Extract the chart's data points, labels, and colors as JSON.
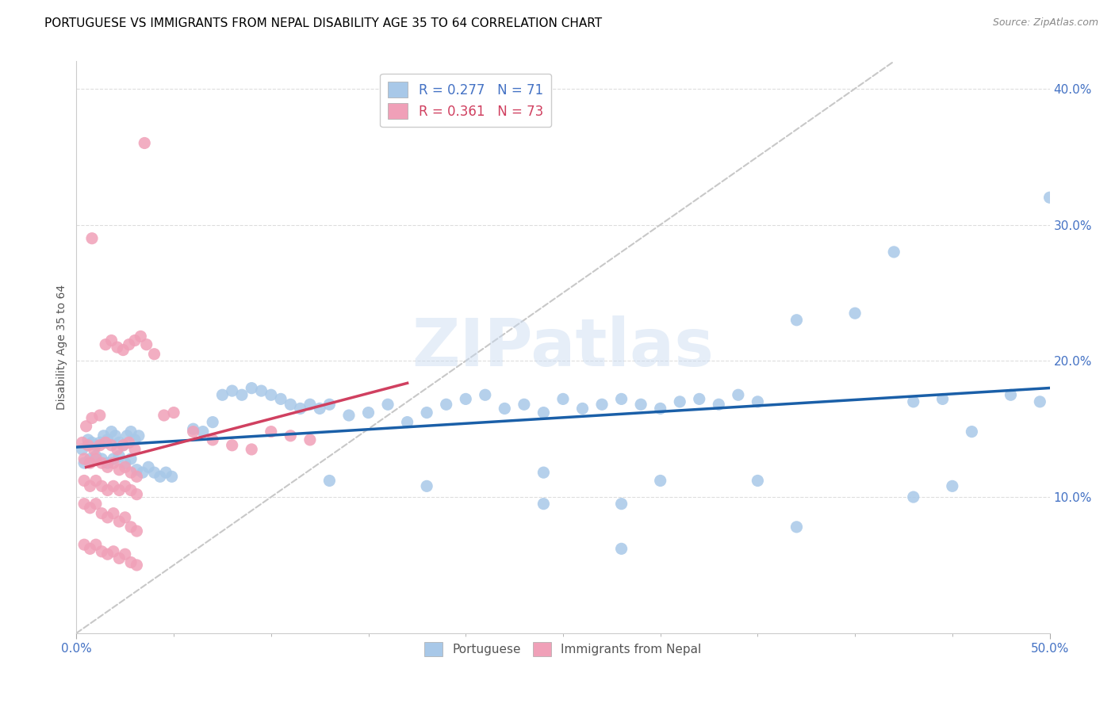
{
  "title": "PORTUGUESE VS IMMIGRANTS FROM NEPAL DISABILITY AGE 35 TO 64 CORRELATION CHART",
  "source": "Source: ZipAtlas.com",
  "ylabel": "Disability Age 35 to 64",
  "xlim": [
    0.0,
    0.5
  ],
  "ylim": [
    0.0,
    0.42
  ],
  "ytick_positions": [
    0.1,
    0.2,
    0.3,
    0.4
  ],
  "ytick_labels": [
    "10.0%",
    "20.0%",
    "30.0%",
    "40.0%"
  ],
  "xtick_positions": [
    0.0,
    0.5
  ],
  "xtick_labels": [
    "0.0%",
    "50.0%"
  ],
  "blue_color": "#A8C8E8",
  "pink_color": "#F0A0B8",
  "blue_line_color": "#1A5FA8",
  "pink_line_color": "#D04060",
  "diagonal_color": "#C8C8C8",
  "watermark": "ZIPatlas",
  "title_fontsize": 11,
  "axis_label_fontsize": 10,
  "tick_fontsize": 11,
  "portuguese_points": [
    [
      0.003,
      0.135
    ],
    [
      0.006,
      0.142
    ],
    [
      0.008,
      0.14
    ],
    [
      0.01,
      0.138
    ],
    [
      0.012,
      0.14
    ],
    [
      0.014,
      0.145
    ],
    [
      0.016,
      0.142
    ],
    [
      0.018,
      0.148
    ],
    [
      0.02,
      0.145
    ],
    [
      0.022,
      0.14
    ],
    [
      0.024,
      0.138
    ],
    [
      0.026,
      0.145
    ],
    [
      0.028,
      0.148
    ],
    [
      0.03,
      0.142
    ],
    [
      0.032,
      0.145
    ],
    [
      0.004,
      0.125
    ],
    [
      0.007,
      0.128
    ],
    [
      0.01,
      0.13
    ],
    [
      0.013,
      0.128
    ],
    [
      0.016,
      0.125
    ],
    [
      0.019,
      0.128
    ],
    [
      0.022,
      0.13
    ],
    [
      0.025,
      0.125
    ],
    [
      0.028,
      0.128
    ],
    [
      0.031,
      0.12
    ],
    [
      0.034,
      0.118
    ],
    [
      0.037,
      0.122
    ],
    [
      0.04,
      0.118
    ],
    [
      0.043,
      0.115
    ],
    [
      0.046,
      0.118
    ],
    [
      0.049,
      0.115
    ],
    [
      0.06,
      0.15
    ],
    [
      0.065,
      0.148
    ],
    [
      0.07,
      0.155
    ],
    [
      0.075,
      0.175
    ],
    [
      0.08,
      0.178
    ],
    [
      0.085,
      0.175
    ],
    [
      0.09,
      0.18
    ],
    [
      0.095,
      0.178
    ],
    [
      0.1,
      0.175
    ],
    [
      0.105,
      0.172
    ],
    [
      0.11,
      0.168
    ],
    [
      0.115,
      0.165
    ],
    [
      0.12,
      0.168
    ],
    [
      0.125,
      0.165
    ],
    [
      0.13,
      0.168
    ],
    [
      0.14,
      0.16
    ],
    [
      0.15,
      0.162
    ],
    [
      0.16,
      0.168
    ],
    [
      0.17,
      0.155
    ],
    [
      0.18,
      0.162
    ],
    [
      0.19,
      0.168
    ],
    [
      0.2,
      0.172
    ],
    [
      0.21,
      0.175
    ],
    [
      0.22,
      0.165
    ],
    [
      0.23,
      0.168
    ],
    [
      0.24,
      0.162
    ],
    [
      0.25,
      0.172
    ],
    [
      0.26,
      0.165
    ],
    [
      0.27,
      0.168
    ],
    [
      0.28,
      0.172
    ],
    [
      0.29,
      0.168
    ],
    [
      0.3,
      0.165
    ],
    [
      0.31,
      0.17
    ],
    [
      0.32,
      0.172
    ],
    [
      0.33,
      0.168
    ],
    [
      0.34,
      0.175
    ],
    [
      0.35,
      0.17
    ],
    [
      0.37,
      0.23
    ],
    [
      0.4,
      0.235
    ],
    [
      0.42,
      0.28
    ],
    [
      0.43,
      0.17
    ],
    [
      0.445,
      0.172
    ],
    [
      0.46,
      0.148
    ],
    [
      0.48,
      0.175
    ],
    [
      0.495,
      0.17
    ],
    [
      0.13,
      0.112
    ],
    [
      0.18,
      0.108
    ],
    [
      0.24,
      0.118
    ],
    [
      0.3,
      0.112
    ],
    [
      0.35,
      0.112
    ],
    [
      0.24,
      0.095
    ],
    [
      0.28,
      0.095
    ],
    [
      0.28,
      0.062
    ],
    [
      0.37,
      0.078
    ],
    [
      0.45,
      0.108
    ],
    [
      0.43,
      0.1
    ],
    [
      0.5,
      0.32
    ]
  ],
  "nepal_points": [
    [
      0.003,
      0.14
    ],
    [
      0.006,
      0.138
    ],
    [
      0.009,
      0.135
    ],
    [
      0.012,
      0.138
    ],
    [
      0.015,
      0.14
    ],
    [
      0.018,
      0.138
    ],
    [
      0.021,
      0.135
    ],
    [
      0.024,
      0.138
    ],
    [
      0.027,
      0.14
    ],
    [
      0.03,
      0.135
    ],
    [
      0.004,
      0.128
    ],
    [
      0.007,
      0.125
    ],
    [
      0.01,
      0.128
    ],
    [
      0.013,
      0.125
    ],
    [
      0.016,
      0.122
    ],
    [
      0.019,
      0.125
    ],
    [
      0.022,
      0.12
    ],
    [
      0.025,
      0.122
    ],
    [
      0.028,
      0.118
    ],
    [
      0.031,
      0.115
    ],
    [
      0.004,
      0.112
    ],
    [
      0.007,
      0.108
    ],
    [
      0.01,
      0.112
    ],
    [
      0.013,
      0.108
    ],
    [
      0.016,
      0.105
    ],
    [
      0.019,
      0.108
    ],
    [
      0.022,
      0.105
    ],
    [
      0.025,
      0.108
    ],
    [
      0.028,
      0.105
    ],
    [
      0.031,
      0.102
    ],
    [
      0.004,
      0.095
    ],
    [
      0.007,
      0.092
    ],
    [
      0.01,
      0.095
    ],
    [
      0.013,
      0.088
    ],
    [
      0.016,
      0.085
    ],
    [
      0.019,
      0.088
    ],
    [
      0.022,
      0.082
    ],
    [
      0.025,
      0.085
    ],
    [
      0.028,
      0.078
    ],
    [
      0.031,
      0.075
    ],
    [
      0.004,
      0.065
    ],
    [
      0.007,
      0.062
    ],
    [
      0.01,
      0.065
    ],
    [
      0.013,
      0.06
    ],
    [
      0.016,
      0.058
    ],
    [
      0.019,
      0.06
    ],
    [
      0.022,
      0.055
    ],
    [
      0.025,
      0.058
    ],
    [
      0.028,
      0.052
    ],
    [
      0.031,
      0.05
    ],
    [
      0.005,
      0.152
    ],
    [
      0.008,
      0.158
    ],
    [
      0.012,
      0.16
    ],
    [
      0.015,
      0.212
    ],
    [
      0.018,
      0.215
    ],
    [
      0.021,
      0.21
    ],
    [
      0.024,
      0.208
    ],
    [
      0.027,
      0.212
    ],
    [
      0.03,
      0.215
    ],
    [
      0.033,
      0.218
    ],
    [
      0.036,
      0.212
    ],
    [
      0.04,
      0.205
    ],
    [
      0.045,
      0.16
    ],
    [
      0.05,
      0.162
    ],
    [
      0.06,
      0.148
    ],
    [
      0.07,
      0.142
    ],
    [
      0.08,
      0.138
    ],
    [
      0.09,
      0.135
    ],
    [
      0.1,
      0.148
    ],
    [
      0.11,
      0.145
    ],
    [
      0.12,
      0.142
    ],
    [
      0.008,
      0.29
    ],
    [
      0.035,
      0.36
    ]
  ]
}
